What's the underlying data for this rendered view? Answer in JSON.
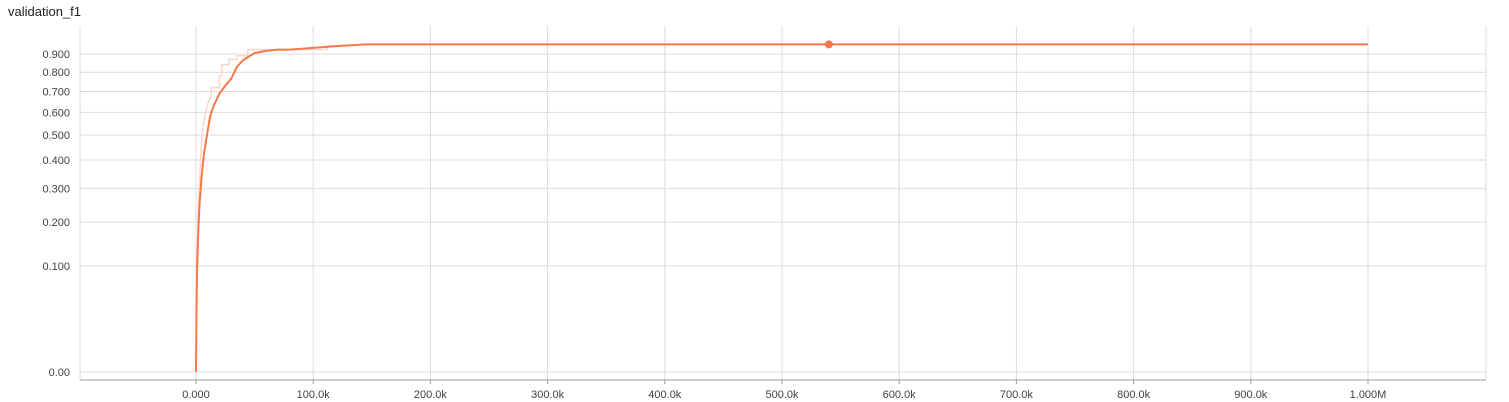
{
  "chart_data": {
    "type": "line",
    "title": "validation_f1",
    "xlabel": "",
    "ylabel": "",
    "x_ticks": [
      "0.000",
      "100.0k",
      "200.0k",
      "300.0k",
      "400.0k",
      "500.0k",
      "600.0k",
      "700.0k",
      "800.0k",
      "900.0k",
      "1.000M"
    ],
    "y_ticks": [
      "0.00",
      "0.100",
      "0.200",
      "0.300",
      "0.400",
      "0.500",
      "0.600",
      "0.700",
      "0.800",
      "0.900"
    ],
    "grid": true,
    "colors": {
      "smoothed": "#f4794b",
      "raw": "#fbd7cb"
    },
    "series": [
      {
        "style": "smoothed",
        "x": [
          0,
          500,
          1000,
          2000,
          3000,
          5000,
          7000,
          10000,
          12000,
          15000,
          20000,
          25000,
          30000,
          35000,
          40000,
          45000,
          50000,
          55000,
          60000,
          70000,
          80000,
          100000,
          120000,
          145000,
          300000,
          500000,
          540000,
          700000,
          900000,
          1000000
        ],
        "y": [
          0,
          0.05,
          0.1,
          0.18,
          0.25,
          0.35,
          0.43,
          0.52,
          0.58,
          0.63,
          0.69,
          0.73,
          0.765,
          0.83,
          0.865,
          0.885,
          0.905,
          0.912,
          0.918,
          0.925,
          0.925,
          0.935,
          0.945,
          0.955,
          0.955,
          0.955,
          0.955,
          0.955,
          0.955,
          0.955
        ]
      },
      {
        "style": "raw",
        "x": [
          0,
          2000,
          5000,
          8000,
          10000,
          13000,
          13000,
          20000,
          20000,
          22000,
          22000,
          28000,
          28000,
          35000,
          35000,
          44000,
          44000,
          112000,
          112000,
          145000,
          1000000
        ],
        "y": [
          0,
          0.25,
          0.5,
          0.6,
          0.64,
          0.68,
          0.72,
          0.72,
          0.78,
          0.78,
          0.84,
          0.84,
          0.87,
          0.87,
          0.89,
          0.89,
          0.925,
          0.925,
          0.945,
          0.955,
          0.955
        ]
      }
    ],
    "highlight_point": {
      "x": 540000,
      "y": 0.955
    }
  }
}
